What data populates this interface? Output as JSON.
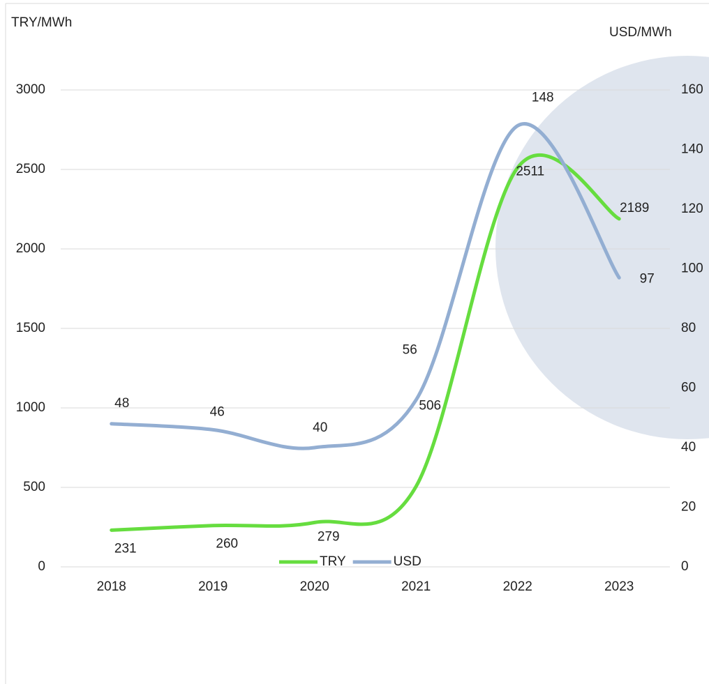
{
  "chart_data": {
    "type": "line",
    "ylabel": "TRY/MWh",
    "y2label": "USD/MWh",
    "categories": [
      "2018",
      "2019",
      "2020",
      "2021",
      "2022",
      "2023"
    ],
    "series": [
      {
        "name": "TRY",
        "color": "#66dd3f",
        "values": [
          231,
          260,
          279,
          506,
          2511,
          2189
        ]
      },
      {
        "name": "USD",
        "color": "#93aed2",
        "axis": "y2",
        "values": [
          48,
          46,
          40,
          56,
          148,
          97
        ]
      }
    ],
    "ylim": [
      0,
      3000
    ],
    "yticks": [
      0,
      500,
      1000,
      1500,
      2000,
      2500,
      3000
    ],
    "y2lim": [
      0,
      160
    ],
    "y2ticks": [
      0,
      20,
      40,
      60,
      80,
      100,
      120,
      140,
      160
    ],
    "grid": true,
    "legend": "bottom"
  }
}
